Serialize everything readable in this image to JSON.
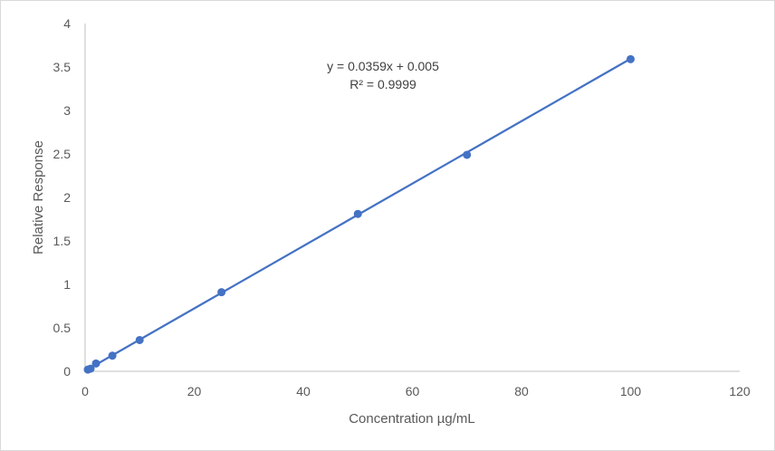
{
  "chart_data": {
    "type": "scatter",
    "title": "",
    "xlabel": "Concentration µg/mL",
    "ylabel": "Relative Response",
    "xlim": [
      0,
      120
    ],
    "ylim": [
      0,
      4
    ],
    "x_ticks": [
      0,
      20,
      40,
      60,
      80,
      100,
      120
    ],
    "y_ticks": [
      0,
      0.5,
      1,
      1.5,
      2,
      2.5,
      3,
      3.5,
      4
    ],
    "x_tick_labels": [
      "0",
      "20",
      "40",
      "60",
      "80",
      "100",
      "120"
    ],
    "y_tick_labels": [
      "0",
      "0.5",
      "1",
      "1.5",
      "2",
      "2.5",
      "3",
      "3.5",
      "4"
    ],
    "grid": false,
    "legend": "none",
    "series": [
      {
        "color": "#4472c4",
        "x": [
          0.5,
          1,
          2,
          5,
          10,
          25,
          50,
          70,
          100
        ],
        "y": [
          0.02,
          0.03,
          0.09,
          0.18,
          0.36,
          0.91,
          1.81,
          2.49,
          3.59
        ]
      }
    ],
    "trendline": {
      "type": "linear",
      "slope": 0.0359,
      "intercept": 0.005,
      "x_range": [
        0.5,
        100
      ],
      "color": "#4472c4"
    },
    "annotations": {
      "equation": "y = 0.0359x + 0.005",
      "r_squared": "R² = 0.9999"
    },
    "axis_color": "#bfbfbf"
  }
}
